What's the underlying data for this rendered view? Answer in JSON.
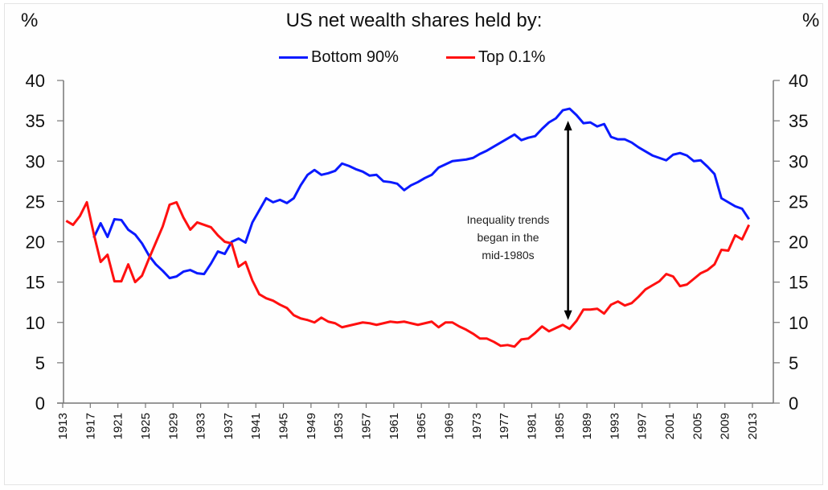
{
  "chart_data": {
    "type": "line",
    "title": "US net wealth shares held by:",
    "ylabel_left": "%",
    "ylabel_right": "%",
    "xlabel": "",
    "ylim": [
      0,
      40
    ],
    "yticks": [
      0,
      5,
      10,
      15,
      20,
      25,
      30,
      35,
      40
    ],
    "xlim": [
      1913,
      2013
    ],
    "xtick_labels": [
      "1913",
      "1917",
      "1921",
      "1925",
      "1929",
      "1933",
      "1937",
      "1941",
      "1945",
      "1949",
      "1953",
      "1957",
      "1961",
      "1965",
      "1969",
      "1973",
      "1977",
      "1981",
      "1985",
      "1989",
      "1993",
      "1997",
      "2001",
      "2005",
      "2009",
      "2013"
    ],
    "grid": false,
    "legend_position": "top-center",
    "dual_axis": true,
    "series": [
      {
        "name": "Bottom 90%",
        "color": "#0a1aff",
        "start_year": 1917,
        "values": [
          20.5,
          22.3,
          20.6,
          22.8,
          22.7,
          21.5,
          20.9,
          19.8,
          18.3,
          17.2,
          16.4,
          15.5,
          15.7,
          16.3,
          16.5,
          16.1,
          16.0,
          17.3,
          18.8,
          18.5,
          20.0,
          20.4,
          19.9,
          22.4,
          23.9,
          25.4,
          24.9,
          25.2,
          24.8,
          25.4,
          27.0,
          28.3,
          28.9,
          28.3,
          28.5,
          28.8,
          29.7,
          29.4,
          29.0,
          28.7,
          28.2,
          28.3,
          27.5,
          27.4,
          27.2,
          26.4,
          27.0,
          27.4,
          27.9,
          28.3,
          29.2,
          29.6,
          30.0,
          30.1,
          30.2,
          30.4,
          30.9,
          31.3,
          31.8,
          32.3,
          32.8,
          33.3,
          32.6,
          32.9,
          33.1,
          34.0,
          34.8,
          35.3,
          36.3,
          36.5,
          35.7,
          34.7,
          34.8,
          34.3,
          34.6,
          33.0,
          32.7,
          32.7,
          32.3,
          31.7,
          31.2,
          30.7,
          30.4,
          30.1,
          30.8,
          31.0,
          30.7,
          30.0,
          30.1,
          29.3,
          28.4,
          25.4,
          24.9,
          24.4,
          24.1,
          22.8
        ]
      },
      {
        "name": "Top 0.1%",
        "color": "#ff1010",
        "start_year": 1913,
        "values": [
          22.6,
          22.1,
          23.2,
          24.9,
          21.0,
          17.5,
          18.4,
          15.1,
          15.1,
          17.2,
          15.0,
          15.8,
          17.9,
          19.9,
          21.9,
          24.6,
          24.9,
          23.0,
          21.5,
          22.4,
          22.1,
          21.8,
          20.8,
          20.0,
          19.8,
          16.9,
          17.5,
          15.2,
          13.5,
          13.0,
          12.7,
          12.2,
          11.8,
          10.9,
          10.5,
          10.3,
          10.0,
          10.6,
          10.1,
          9.9,
          9.4,
          9.6,
          9.8,
          10.0,
          9.9,
          9.7,
          9.9,
          10.1,
          10.0,
          10.1,
          9.9,
          9.7,
          9.9,
          10.1,
          9.4,
          10.0,
          10.0,
          9.5,
          9.1,
          8.6,
          8.0,
          8.0,
          7.6,
          7.1,
          7.2,
          7.0,
          7.9,
          8.0,
          8.7,
          9.5,
          8.9,
          9.3,
          9.7,
          9.2,
          10.2,
          11.6,
          11.6,
          11.7,
          11.1,
          12.2,
          12.6,
          12.1,
          12.4,
          13.2,
          14.1,
          14.6,
          15.1,
          16.0,
          15.7,
          14.5,
          14.7,
          15.4,
          16.1,
          16.5,
          17.2,
          19.0,
          18.9,
          20.8,
          20.3,
          22.1
        ]
      }
    ],
    "annotation": {
      "lines": [
        "Inequality trends",
        "began in the",
        "mid-1980s"
      ],
      "arrow_year": 1986,
      "arrow_from_value": 35,
      "arrow_to_value": 10.3,
      "arrow_style": "double-headed"
    }
  }
}
